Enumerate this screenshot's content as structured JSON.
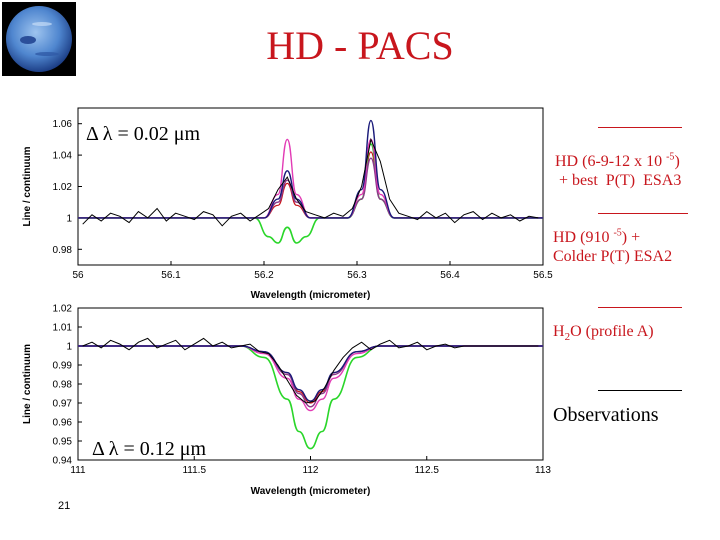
{
  "slide": {
    "title": "HD - PACS",
    "slide_number": "21",
    "title_color": "#c8161d"
  },
  "legend": [
    {
      "pre": "HD (6-9-12 x 10 ",
      "sup": "-5",
      "post": ")",
      "line2": " + best  P(T)  ESA3",
      "color": "#c8161d"
    },
    {
      "pre": "HD (910 ",
      "sup": "-5",
      "post": ") +",
      "line2": "Colder P(T) ESA2",
      "color": "#c8161d"
    },
    {
      "pre": "H",
      "sub": "2",
      "post": "O (profile A)",
      "color": "#c8161d"
    },
    {
      "text": "Observations",
      "color": "#000000"
    }
  ],
  "chart_data": [
    {
      "type": "line",
      "annotation": "Δ λ = 0.02 μm",
      "xlabel": "Wavelength (micrometer)",
      "ylabel": "Line / continuum",
      "xlim": [
        56.0,
        56.5
      ],
      "ylim": [
        0.97,
        1.07
      ],
      "xticks": [
        56.0,
        56.1,
        56.2,
        56.3,
        56.4,
        56.5
      ],
      "xtick_labels": [
        "56",
        "56.1",
        "56.2",
        "56.3",
        "56.4",
        "56.5"
      ],
      "yticks": [
        0.98,
        1.0,
        1.02,
        1.04,
        1.06
      ],
      "ytick_labels": [
        "0.98",
        "1",
        "1.02",
        "1.04",
        "1.06"
      ],
      "series": [
        {
          "color": "#c8161d",
          "width": 1.2,
          "x": [
            56.0,
            56.2,
            56.215,
            56.225,
            56.235,
            56.25,
            56.29,
            56.305,
            56.315,
            56.325,
            56.34,
            56.5
          ],
          "y": [
            1.0,
            1.0,
            1.008,
            1.022,
            1.008,
            1.0,
            1.0,
            1.012,
            1.042,
            1.012,
            1.0,
            1.0
          ]
        },
        {
          "color": "#2ad62a",
          "width": 1.6,
          "x": [
            56.0,
            56.19,
            56.205,
            56.215,
            56.225,
            56.235,
            56.245,
            56.26,
            56.29,
            56.305,
            56.315,
            56.325,
            56.34,
            56.5
          ],
          "y": [
            1.0,
            1.0,
            0.988,
            0.984,
            0.994,
            0.984,
            0.988,
            1.0,
            1.0,
            1.012,
            1.047,
            1.012,
            1.0,
            1.0
          ]
        },
        {
          "color": "#8b3a8b",
          "width": 1.4,
          "x": [
            56.0,
            56.2,
            56.215,
            56.225,
            56.235,
            56.25,
            56.29,
            56.305,
            56.315,
            56.325,
            56.34,
            56.5
          ],
          "y": [
            1.0,
            1.0,
            1.01,
            1.024,
            1.01,
            1.0,
            1.0,
            1.012,
            1.038,
            1.012,
            1.0,
            1.0
          ]
        },
        {
          "color": "#e23bb5",
          "width": 1.4,
          "x": [
            56.0,
            56.2,
            56.215,
            56.225,
            56.235,
            56.25,
            56.29,
            56.305,
            56.315,
            56.325,
            56.34,
            56.5
          ],
          "y": [
            1.0,
            1.0,
            1.015,
            1.05,
            1.015,
            1.0,
            1.0,
            1.015,
            1.05,
            1.015,
            1.0,
            1.0
          ]
        },
        {
          "color": "#1a1a7a",
          "width": 1.4,
          "x": [
            56.0,
            56.2,
            56.215,
            56.225,
            56.235,
            56.25,
            56.29,
            56.305,
            56.315,
            56.325,
            56.34,
            56.5
          ],
          "y": [
            1.0,
            1.0,
            1.012,
            1.03,
            1.012,
            1.0,
            1.0,
            1.018,
            1.062,
            1.018,
            1.0,
            1.0
          ]
        },
        {
          "color": "#000000",
          "width": 1.0,
          "x": [
            56.005,
            56.015,
            56.025,
            56.035,
            56.045,
            56.055,
            56.065,
            56.075,
            56.085,
            56.095,
            56.105,
            56.115,
            56.125,
            56.135,
            56.145,
            56.155,
            56.165,
            56.175,
            56.185,
            56.195,
            56.205,
            56.215,
            56.225,
            56.235,
            56.245,
            56.255,
            56.265,
            56.275,
            56.285,
            56.295,
            56.305,
            56.315,
            56.325,
            56.335,
            56.345,
            56.355,
            56.365,
            56.375,
            56.385,
            56.395,
            56.405,
            56.415,
            56.425,
            56.435,
            56.445,
            56.455,
            56.465,
            56.475,
            56.485,
            56.495
          ],
          "y": [
            0.996,
            1.002,
            0.998,
            1.003,
            1.001,
            0.997,
            1.004,
            1.0,
            1.006,
            0.998,
            1.003,
            1.001,
            0.999,
            1.004,
            1.002,
            0.995,
            1.001,
            1.003,
            0.998,
            1.002,
            1.006,
            1.018,
            1.026,
            1.012,
            1.004,
            1.002,
            1.0,
            1.003,
            1.001,
            1.006,
            1.02,
            1.05,
            1.036,
            1.012,
            1.003,
            1.001,
            0.999,
            1.004,
            1.0,
            1.003,
            0.997,
            1.002,
            1.004,
            0.999,
            1.003,
            1.0,
            1.002,
            0.998,
            1.001,
            1.0
          ]
        }
      ]
    },
    {
      "type": "line",
      "annotation": "Δ λ = 0.12 μm",
      "xlabel": "Wavelength (micrometer)",
      "ylabel": "Line / continuum",
      "xlim": [
        111.0,
        113.0
      ],
      "ylim": [
        0.94,
        1.02
      ],
      "xticks": [
        111.0,
        111.5,
        112.0,
        112.5,
        113.0
      ],
      "xtick_labels": [
        "111",
        "111.5",
        "112",
        "112.5",
        "113"
      ],
      "yticks": [
        0.94,
        0.95,
        0.96,
        0.97,
        0.98,
        0.99,
        1.0,
        1.01,
        1.02
      ],
      "ytick_labels": [
        "0.94",
        "0.95",
        "0.96",
        "0.97",
        "0.98",
        "0.99",
        "1",
        "1.01",
        "1.02"
      ],
      "series": [
        {
          "color": "#c8161d",
          "width": 1.2,
          "x": [
            111.0,
            111.7,
            111.8,
            111.9,
            111.95,
            112.0,
            112.05,
            112.1,
            112.2,
            112.3,
            113.0
          ],
          "y": [
            1.0,
            1.0,
            0.997,
            0.986,
            0.976,
            0.97,
            0.976,
            0.986,
            0.997,
            1.0,
            1.0
          ]
        },
        {
          "color": "#2ad62a",
          "width": 1.6,
          "x": [
            111.0,
            111.7,
            111.8,
            111.9,
            111.95,
            112.0,
            112.05,
            112.1,
            112.2,
            112.3,
            113.0
          ],
          "y": [
            1.0,
            1.0,
            0.994,
            0.972,
            0.955,
            0.946,
            0.955,
            0.972,
            0.994,
            1.0,
            1.0
          ]
        },
        {
          "color": "#8b3a8b",
          "width": 1.4,
          "x": [
            111.0,
            111.7,
            111.8,
            111.9,
            111.95,
            112.0,
            112.05,
            112.1,
            112.2,
            112.3,
            113.0
          ],
          "y": [
            1.0,
            1.0,
            0.997,
            0.985,
            0.975,
            0.968,
            0.975,
            0.985,
            0.997,
            1.0,
            1.0
          ]
        },
        {
          "color": "#e23bb5",
          "width": 1.4,
          "x": [
            111.0,
            111.7,
            111.8,
            111.9,
            111.95,
            112.0,
            112.05,
            112.1,
            112.2,
            112.3,
            113.0
          ],
          "y": [
            1.0,
            1.0,
            0.996,
            0.983,
            0.972,
            0.966,
            0.972,
            0.983,
            0.996,
            1.0,
            1.0
          ]
        },
        {
          "color": "#1a1a7a",
          "width": 1.4,
          "x": [
            111.0,
            111.7,
            111.8,
            111.9,
            111.95,
            112.0,
            112.05,
            112.1,
            112.2,
            112.3,
            113.0
          ],
          "y": [
            1.0,
            1.0,
            0.997,
            0.986,
            0.977,
            0.971,
            0.977,
            0.986,
            0.997,
            1.0,
            1.0
          ]
        },
        {
          "color": "#000000",
          "width": 1.0,
          "x": [
            111.02,
            111.06,
            111.1,
            111.14,
            111.18,
            111.22,
            111.26,
            111.3,
            111.34,
            111.38,
            111.42,
            111.46,
            111.5,
            111.54,
            111.58,
            111.62,
            111.66,
            111.7,
            111.74,
            111.78,
            111.82,
            111.86,
            111.9,
            111.94,
            111.98,
            112.02,
            112.06,
            112.1,
            112.14,
            112.18,
            112.22,
            112.26,
            112.3,
            112.34,
            112.38,
            112.42,
            112.46,
            112.5,
            112.54,
            112.58,
            112.62,
            112.66,
            112.7,
            112.74,
            112.78,
            112.82,
            112.86,
            112.9,
            112.94,
            112.98
          ],
          "y": [
            1.0,
            1.002,
            0.999,
            1.003,
            1.001,
            0.998,
            1.002,
            1.004,
            0.999,
            1.001,
            1.003,
            0.998,
            1.001,
            1.004,
            1.0,
            1.002,
            0.999,
            1.0,
            1.001,
            0.997,
            0.996,
            0.99,
            0.982,
            0.974,
            0.97,
            0.971,
            0.978,
            0.987,
            0.994,
            0.999,
            1.002,
            0.998,
            1.001,
            1.003,
            0.999,
            1.0,
            1.002,
            0.998,
            1.0,
            1.001,
            0.999,
            1.0,
            1.0,
            1.0,
            1.0,
            1.0,
            1.0,
            1.0,
            1.0,
            1.0
          ]
        }
      ]
    }
  ]
}
